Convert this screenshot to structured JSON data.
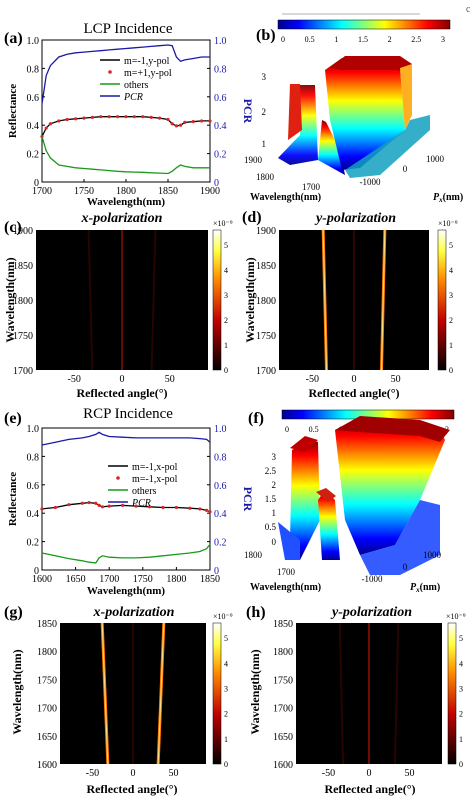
{
  "figure": {
    "top_right_mark": "c"
  },
  "panels": {
    "a": {
      "letter": "(a)",
      "title": "LCP Incidence"
    },
    "b": {
      "letter": "(b)"
    },
    "c": {
      "letter": "(c)",
      "title": "x-polarization"
    },
    "d": {
      "letter": "(d)",
      "title": "y-polarization"
    },
    "e": {
      "letter": "(e)",
      "title": "RCP Incidence"
    },
    "f": {
      "letter": "(f)"
    },
    "g": {
      "letter": "(g)",
      "title": "x-polarization"
    },
    "h": {
      "letter": "(h)",
      "title": "y-polarization"
    }
  },
  "colors": {
    "black_line": "#000000",
    "red_markers": "#d62728",
    "green_line": "#1a9a1a",
    "blue_line": "#1a1aa8"
  },
  "chart_data": [
    {
      "id": "a",
      "type": "line",
      "title": "LCP Incidence",
      "xlabel": "Wavelength(nm)",
      "ylabel": "Reflectance",
      "y2label": "PCR",
      "xlim": [
        1700,
        1900
      ],
      "ylim": [
        0,
        1.0
      ],
      "y2lim": [
        0,
        1.0
      ],
      "xticks": [
        "1700",
        "1750",
        "1800",
        "1850",
        "1900"
      ],
      "yticks": [
        "0",
        "0.2",
        "0.4",
        "0.6",
        "0.8",
        "1.0"
      ],
      "y2ticks": [
        "0",
        "0.2",
        "0.4",
        "0.6",
        "0.8",
        "1.0"
      ],
      "legend_position": "top-right",
      "x": [
        1700,
        1705,
        1710,
        1720,
        1730,
        1740,
        1750,
        1760,
        1770,
        1780,
        1790,
        1800,
        1810,
        1820,
        1830,
        1840,
        1850,
        1855,
        1860,
        1865,
        1870,
        1880,
        1890,
        1900
      ],
      "series": [
        {
          "name": "m=-1,y-pol",
          "style": "line",
          "color": "black",
          "axis": "left",
          "values": [
            0.32,
            0.38,
            0.41,
            0.43,
            0.44,
            0.445,
            0.45,
            0.455,
            0.46,
            0.46,
            0.46,
            0.46,
            0.46,
            0.46,
            0.455,
            0.45,
            0.44,
            0.41,
            0.395,
            0.4,
            0.42,
            0.425,
            0.43,
            0.43
          ]
        },
        {
          "name": "m=+1,y-pol",
          "style": "markers",
          "color": "red",
          "axis": "left",
          "values": [
            0.32,
            0.38,
            0.41,
            0.43,
            0.44,
            0.445,
            0.45,
            0.455,
            0.46,
            0.46,
            0.46,
            0.46,
            0.46,
            0.46,
            0.455,
            0.45,
            0.44,
            0.41,
            0.395,
            0.4,
            0.42,
            0.425,
            0.43,
            0.43
          ]
        },
        {
          "name": "others",
          "style": "line",
          "color": "green",
          "axis": "left",
          "values": [
            0.32,
            0.22,
            0.17,
            0.12,
            0.11,
            0.1,
            0.095,
            0.09,
            0.085,
            0.08,
            0.075,
            0.072,
            0.07,
            0.068,
            0.065,
            0.063,
            0.06,
            0.075,
            0.1,
            0.12,
            0.11,
            0.1,
            0.1,
            0.1
          ]
        },
        {
          "name": "PCR",
          "style": "line",
          "color": "blue",
          "axis": "right",
          "values": [
            0.55,
            0.75,
            0.82,
            0.88,
            0.9,
            0.91,
            0.915,
            0.92,
            0.925,
            0.93,
            0.935,
            0.94,
            0.945,
            0.95,
            0.955,
            0.96,
            0.965,
            0.96,
            0.88,
            0.85,
            0.86,
            0.87,
            0.88,
            0.88
          ]
        }
      ]
    },
    {
      "id": "b",
      "type": "surface",
      "xlabel": "Wavelength(nm)",
      "ylabel": "Px(nm)",
      "xticks": [
        "1900",
        "1800",
        "1700"
      ],
      "yticks": [
        "-1000",
        "0",
        "1000"
      ],
      "colorbar_ticks": [
        "0",
        "0.5",
        "1",
        "1.5",
        "2",
        "2.5",
        "3"
      ],
      "zlim": [
        0,
        3
      ],
      "ridges": [
        {
          "x": -1000,
          "z": 2.7
        },
        {
          "x": 0,
          "z": 1.6
        },
        {
          "x": 1000,
          "z": 3.0
        }
      ]
    },
    {
      "id": "c",
      "type": "heatmap",
      "title": "x-polarization",
      "xlabel": "Reflected angle(°)",
      "ylabel": "Wavelength(nm)",
      "xticks": [
        "-50",
        "0",
        "50"
      ],
      "yticks": [
        "1900",
        "1850",
        "1800",
        "1750",
        "1700"
      ],
      "xlim": [
        -90,
        90
      ],
      "ylim": [
        1700,
        1900
      ],
      "colorbar_ticks": [
        "0",
        "1",
        "2",
        "3",
        "4",
        "5"
      ],
      "colorbar_exponent": "×10⁻⁹",
      "streaks": [
        {
          "x_start": 0,
          "x_end": 0,
          "intensity": 0.25
        },
        {
          "x_start": -35,
          "x_end": -31,
          "intensity": 0.1
        },
        {
          "x_start": 35,
          "x_end": 31,
          "intensity": 0.1
        }
      ]
    },
    {
      "id": "d",
      "type": "heatmap",
      "title": "y-polarization",
      "xlabel": "Reflected angle(°)",
      "ylabel": "Wavelength(nm)",
      "xticks": [
        "-50",
        "0",
        "50"
      ],
      "yticks": [
        "1900",
        "1850",
        "1800",
        "1750",
        "1700"
      ],
      "xlim": [
        -90,
        90
      ],
      "ylim": [
        1700,
        1900
      ],
      "colorbar_ticks": [
        "0",
        "1",
        "2",
        "3",
        "4",
        "5"
      ],
      "colorbar_exponent": "×10⁻⁹",
      "streaks": [
        {
          "x_start": -37,
          "x_end": -33,
          "intensity": 1.0
        },
        {
          "x_start": 37,
          "x_end": 33,
          "intensity": 1.0
        },
        {
          "x_start": 0,
          "x_end": 0,
          "intensity": 0.12
        }
      ]
    },
    {
      "id": "e",
      "type": "line",
      "title": "RCP Incidence",
      "xlabel": "Wavelength(nm)",
      "ylabel": "Reflectance",
      "y2label": "PCR",
      "xlim": [
        1600,
        1850
      ],
      "ylim": [
        0,
        1.0
      ],
      "y2lim": [
        0,
        1.0
      ],
      "xticks": [
        "1600",
        "1650",
        "1700",
        "1750",
        "1800",
        "1850"
      ],
      "yticks": [
        "0",
        "0.2",
        "0.4",
        "0.6",
        "0.8",
        "1.0"
      ],
      "y2ticks": [
        "0",
        "0.2",
        "0.4",
        "0.6",
        "0.8",
        "1.0"
      ],
      "legend_position": "right",
      "x": [
        1600,
        1620,
        1640,
        1660,
        1670,
        1680,
        1685,
        1690,
        1700,
        1720,
        1740,
        1760,
        1780,
        1800,
        1820,
        1835,
        1845,
        1850
      ],
      "series": [
        {
          "name": "m=-1,x-pol",
          "style": "line",
          "color": "black",
          "axis": "left",
          "values": [
            0.43,
            0.44,
            0.46,
            0.47,
            0.475,
            0.47,
            0.455,
            0.445,
            0.45,
            0.455,
            0.45,
            0.445,
            0.44,
            0.44,
            0.435,
            0.43,
            0.42,
            0.41
          ]
        },
        {
          "name": "m=-1,x-pol",
          "style": "markers",
          "color": "red",
          "axis": "left",
          "values": [
            0.43,
            0.44,
            0.46,
            0.47,
            0.475,
            0.47,
            0.455,
            0.445,
            0.45,
            0.455,
            0.45,
            0.445,
            0.44,
            0.44,
            0.435,
            0.43,
            0.42,
            0.41
          ]
        },
        {
          "name": "others",
          "style": "line",
          "color": "green",
          "axis": "left",
          "values": [
            0.12,
            0.1,
            0.08,
            0.065,
            0.055,
            0.05,
            0.085,
            0.1,
            0.09,
            0.085,
            0.085,
            0.09,
            0.1,
            0.11,
            0.12,
            0.13,
            0.15,
            0.18
          ]
        },
        {
          "name": "PCR",
          "style": "line",
          "color": "blue",
          "axis": "right",
          "values": [
            0.88,
            0.9,
            0.92,
            0.93,
            0.94,
            0.955,
            0.97,
            0.955,
            0.94,
            0.935,
            0.93,
            0.93,
            0.93,
            0.93,
            0.93,
            0.925,
            0.92,
            0.9
          ]
        }
      ]
    },
    {
      "id": "f",
      "type": "surface",
      "xlabel": "Wavelength(nm)",
      "ylabel": "Px(nm)",
      "xticks": [
        "1800",
        "1700"
      ],
      "yticks": [
        "-1000",
        "0",
        "1000"
      ],
      "zticks": [
        "0",
        "0.5",
        "1",
        "1.5",
        "2",
        "2.5",
        "3"
      ],
      "colorbar_ticks": [
        "0",
        "0.5",
        "1",
        "1.5",
        "2",
        "2.5",
        "3"
      ],
      "zlim": [
        0,
        3
      ],
      "ridges": [
        {
          "x": -1000,
          "z": 3.2
        },
        {
          "x": 0,
          "z": 1.9
        },
        {
          "x": 1000,
          "z": 3.3
        }
      ]
    },
    {
      "id": "g",
      "type": "heatmap",
      "title": "x-polarization",
      "xlabel": "Reflected angle(°)",
      "ylabel": "Wavelength(nm)",
      "xticks": [
        "-50",
        "0",
        "50"
      ],
      "yticks": [
        "1850",
        "1800",
        "1750",
        "1700",
        "1650",
        "1600"
      ],
      "xlim": [
        -90,
        90
      ],
      "ylim": [
        1600,
        1850
      ],
      "colorbar_ticks": [
        "0",
        "1",
        "2",
        "3",
        "4",
        "5"
      ],
      "colorbar_exponent": "×10⁻⁹",
      "streaks": [
        {
          "x_start": -38,
          "x_end": -31,
          "intensity": 1.0
        },
        {
          "x_start": 38,
          "x_end": 31,
          "intensity": 1.0
        },
        {
          "x_start": 0,
          "x_end": 0,
          "intensity": 0.1
        }
      ]
    },
    {
      "id": "h",
      "type": "heatmap",
      "title": "y-polarization",
      "xlabel": "Reflected angle(°)",
      "ylabel": "Wavelength(nm)",
      "xticks": [
        "-50",
        "0",
        "50"
      ],
      "yticks": [
        "1850",
        "1800",
        "1750",
        "1700",
        "1650",
        "1600"
      ],
      "xlim": [
        -90,
        90
      ],
      "ylim": [
        1600,
        1850
      ],
      "colorbar_ticks": [
        "0",
        "1",
        "2",
        "3",
        "4",
        "5"
      ],
      "colorbar_exponent": "×10⁻⁹",
      "streaks": [
        {
          "x_start": 0,
          "x_end": 0,
          "intensity": 0.28
        },
        {
          "x_start": -36,
          "x_end": -32,
          "intensity": 0.1
        },
        {
          "x_start": 36,
          "x_end": 32,
          "intensity": 0.1
        }
      ]
    }
  ]
}
